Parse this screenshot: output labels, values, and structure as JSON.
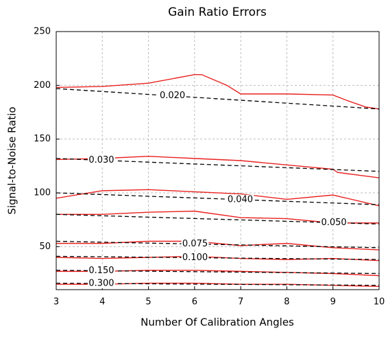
{
  "chart_data": {
    "type": "line",
    "title": "Gain Ratio Errors",
    "xlabel": "Number Of Calibration Angles",
    "ylabel": "Signal-to-Noise Ratio",
    "xlim": [
      3,
      10
    ],
    "xticks": [
      3,
      4,
      5,
      6,
      7,
      8,
      9,
      10
    ],
    "ylim": [
      10,
      250
    ],
    "yticks": [
      50,
      100,
      150,
      200,
      250
    ],
    "grid": true,
    "series": [
      {
        "color": "#e8211f",
        "x": [
          3,
          4,
          5,
          6,
          6.15,
          6.7,
          7,
          8,
          9,
          9.3,
          9.7,
          10
        ],
        "values": [
          198,
          199,
          202,
          210,
          210,
          200,
          192,
          192,
          191,
          186,
          180,
          178
        ]
      },
      {
        "name": "0.020",
        "color": "#000000",
        "dashed": true,
        "x": [
          3,
          10
        ],
        "values": [
          197,
          178
        ]
      },
      {
        "color": "#e8211f",
        "x": [
          3,
          4,
          5,
          6,
          7,
          8,
          9,
          9.1,
          10
        ],
        "values": [
          131,
          132,
          134,
          132,
          130,
          126,
          122,
          119,
          114
        ]
      },
      {
        "name": "0.030",
        "color": "#000000",
        "dashed": true,
        "x": [
          3,
          10
        ],
        "values": [
          132,
          120
        ]
      },
      {
        "color": "#e8211f",
        "x": [
          3,
          4,
          5,
          6,
          7,
          8,
          9,
          10
        ],
        "values": [
          95,
          102,
          103,
          101,
          99,
          94,
          98,
          88
        ]
      },
      {
        "name": "0.040",
        "color": "#000000",
        "dashed": true,
        "x": [
          3,
          10
        ],
        "values": [
          100,
          89
        ]
      },
      {
        "color": "#e8211f",
        "x": [
          3,
          4,
          5,
          6,
          7,
          8,
          9,
          10
        ],
        "values": [
          80,
          80,
          82,
          83,
          77,
          76,
          72,
          72
        ]
      },
      {
        "name": "0.050",
        "color": "#000000",
        "dashed": true,
        "x": [
          3,
          10
        ],
        "values": [
          80,
          71
        ]
      },
      {
        "color": "#e8211f",
        "x": [
          3,
          4,
          5,
          6,
          7,
          8,
          9,
          10
        ],
        "values": [
          53,
          53,
          55,
          55,
          51,
          53,
          49,
          47
        ]
      },
      {
        "name": "0.075",
        "color": "#000000",
        "dashed": true,
        "x": [
          3,
          10
        ],
        "values": [
          55,
          49
        ]
      },
      {
        "color": "#e8211f",
        "x": [
          3,
          4,
          5,
          6,
          7,
          8,
          9,
          10
        ],
        "values": [
          40,
          39,
          40,
          41,
          39,
          38,
          39,
          37
        ]
      },
      {
        "name": "0.100",
        "color": "#000000",
        "dashed": true,
        "x": [
          3,
          10
        ],
        "values": [
          41,
          38
        ]
      },
      {
        "color": "#e8211f",
        "x": [
          3,
          4,
          5,
          6,
          7,
          8,
          9,
          10
        ],
        "values": [
          27,
          27,
          28,
          28,
          27,
          26,
          25,
          23
        ]
      },
      {
        "name": "0.150",
        "color": "#000000",
        "dashed": true,
        "x": [
          3,
          10
        ],
        "values": [
          28,
          25
        ]
      },
      {
        "color": "#e8211f",
        "x": [
          3,
          4,
          5,
          6,
          7,
          8,
          9,
          10
        ],
        "values": [
          15,
          15,
          16,
          16,
          15,
          15,
          14,
          13
        ]
      },
      {
        "name": "0.300",
        "color": "#000000",
        "dashed": true,
        "x": [
          3,
          10
        ],
        "values": [
          16,
          14
        ]
      }
    ]
  }
}
